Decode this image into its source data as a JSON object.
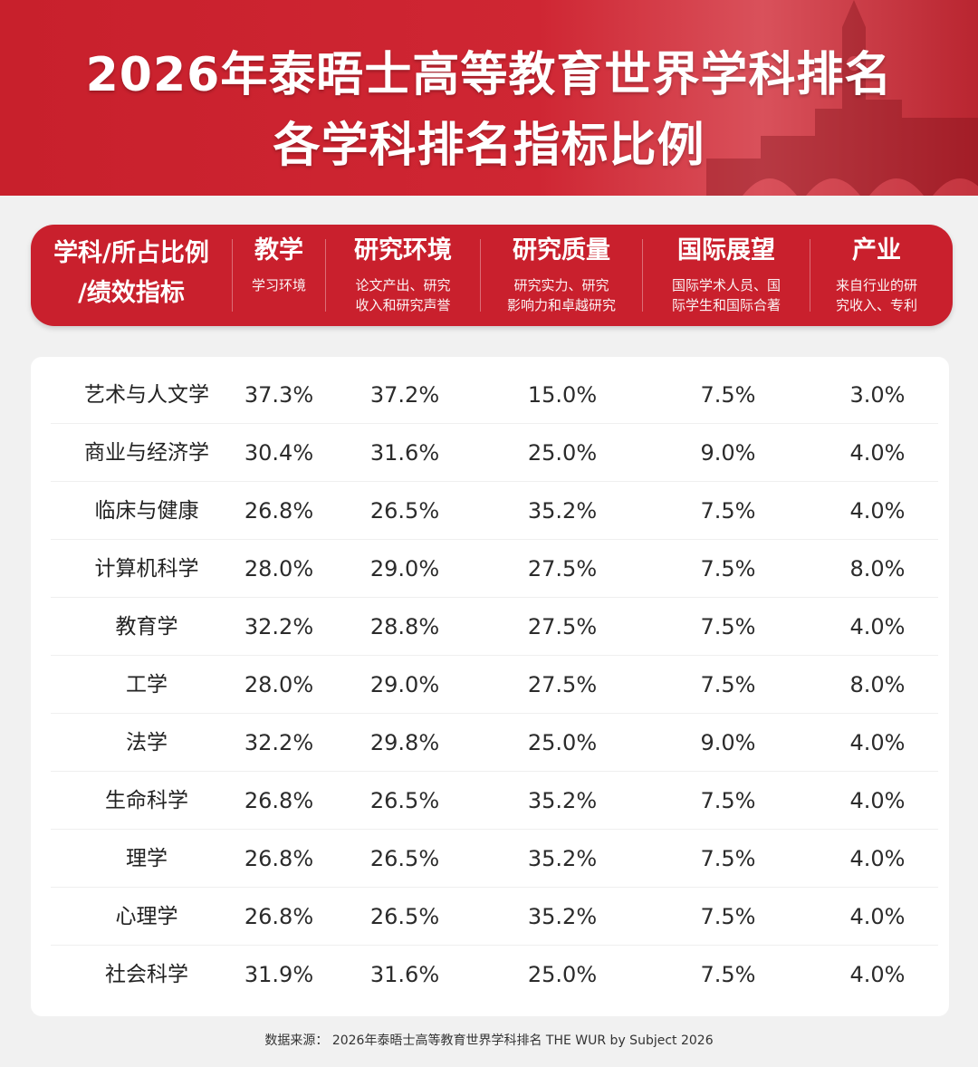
{
  "title": {
    "line1": "2026年泰晤士高等教育世界学科排名",
    "line2": "各学科排名指标比例"
  },
  "header": {
    "first": {
      "line1": "学科/所占比例",
      "line2": "/绩效指标"
    },
    "columns": [
      {
        "title": "教学",
        "sub1": "学习环境",
        "sub2": ""
      },
      {
        "title": "研究环境",
        "sub1": "论文产出、研究",
        "sub2": "收入和研究声誉"
      },
      {
        "title": "研究质量",
        "sub1": "研究实力、研究",
        "sub2": "影响力和卓越研究"
      },
      {
        "title": "国际展望",
        "sub1": "国际学术人员、国",
        "sub2": "际学生和国际合著"
      },
      {
        "title": "产业",
        "sub1": "来自行业的研",
        "sub2": "究收入、专利"
      }
    ]
  },
  "rows": [
    {
      "subject": "艺术与人文学",
      "values": [
        "37.3%",
        "37.2%",
        "15.0%",
        "7.5%",
        "3.0%"
      ]
    },
    {
      "subject": "商业与经济学",
      "values": [
        "30.4%",
        "31.6%",
        "25.0%",
        "9.0%",
        "4.0%"
      ]
    },
    {
      "subject": "临床与健康",
      "values": [
        "26.8%",
        "26.5%",
        "35.2%",
        "7.5%",
        "4.0%"
      ]
    },
    {
      "subject": "计算机科学",
      "values": [
        "28.0%",
        "29.0%",
        "27.5%",
        "7.5%",
        "8.0%"
      ]
    },
    {
      "subject": "教育学",
      "values": [
        "32.2%",
        "28.8%",
        "27.5%",
        "7.5%",
        "4.0%"
      ]
    },
    {
      "subject": "工学",
      "values": [
        "28.0%",
        "29.0%",
        "27.5%",
        "7.5%",
        "8.0%"
      ]
    },
    {
      "subject": "法学",
      "values": [
        "32.2%",
        "29.8%",
        "25.0%",
        "9.0%",
        "4.0%"
      ]
    },
    {
      "subject": "生命科学",
      "values": [
        "26.8%",
        "26.5%",
        "35.2%",
        "7.5%",
        "4.0%"
      ]
    },
    {
      "subject": "理学",
      "values": [
        "26.8%",
        "26.5%",
        "35.2%",
        "7.5%",
        "4.0%"
      ]
    },
    {
      "subject": "心理学",
      "values": [
        "26.8%",
        "26.5%",
        "35.2%",
        "7.5%",
        "4.0%"
      ]
    },
    {
      "subject": "社会科学",
      "values": [
        "31.9%",
        "31.6%",
        "25.0%",
        "7.5%",
        "4.0%"
      ]
    }
  ],
  "footer": "数据来源： 2026年泰晤士高等教育世界学科排名 THE WUR by Subject 2026",
  "colors": {
    "brand_red": "#c9202d",
    "banner_red": "#cf2633",
    "background": "#f1f1f1"
  }
}
